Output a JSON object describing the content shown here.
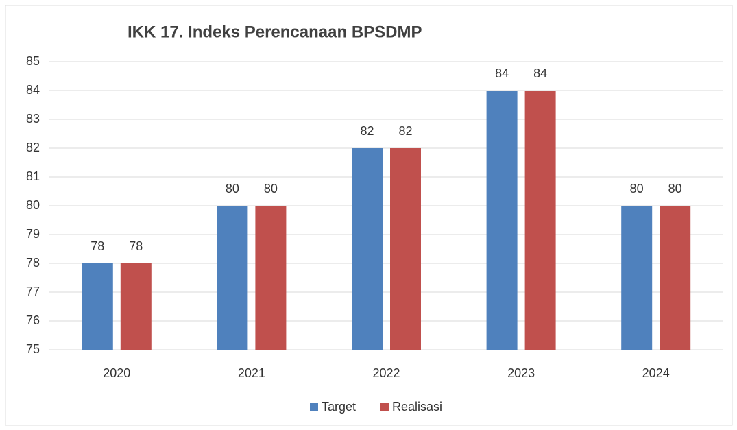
{
  "chart_data": {
    "type": "bar",
    "title": "IKK 17. Indeks Perencanaan BPSDMP",
    "categories": [
      "2020",
      "2021",
      "2022",
      "2023",
      "2024"
    ],
    "series": [
      {
        "name": "Target",
        "color": "#4f81bd",
        "values": [
          78,
          80,
          82,
          84,
          80
        ]
      },
      {
        "name": "Realisasi",
        "color": "#c0504d",
        "values": [
          78,
          80,
          82,
          84,
          80
        ]
      }
    ],
    "ylim": [
      75,
      85
    ],
    "yticks": [
      75,
      76,
      77,
      78,
      79,
      80,
      81,
      82,
      83,
      84,
      85
    ],
    "grid": true,
    "legend": "bottom"
  }
}
